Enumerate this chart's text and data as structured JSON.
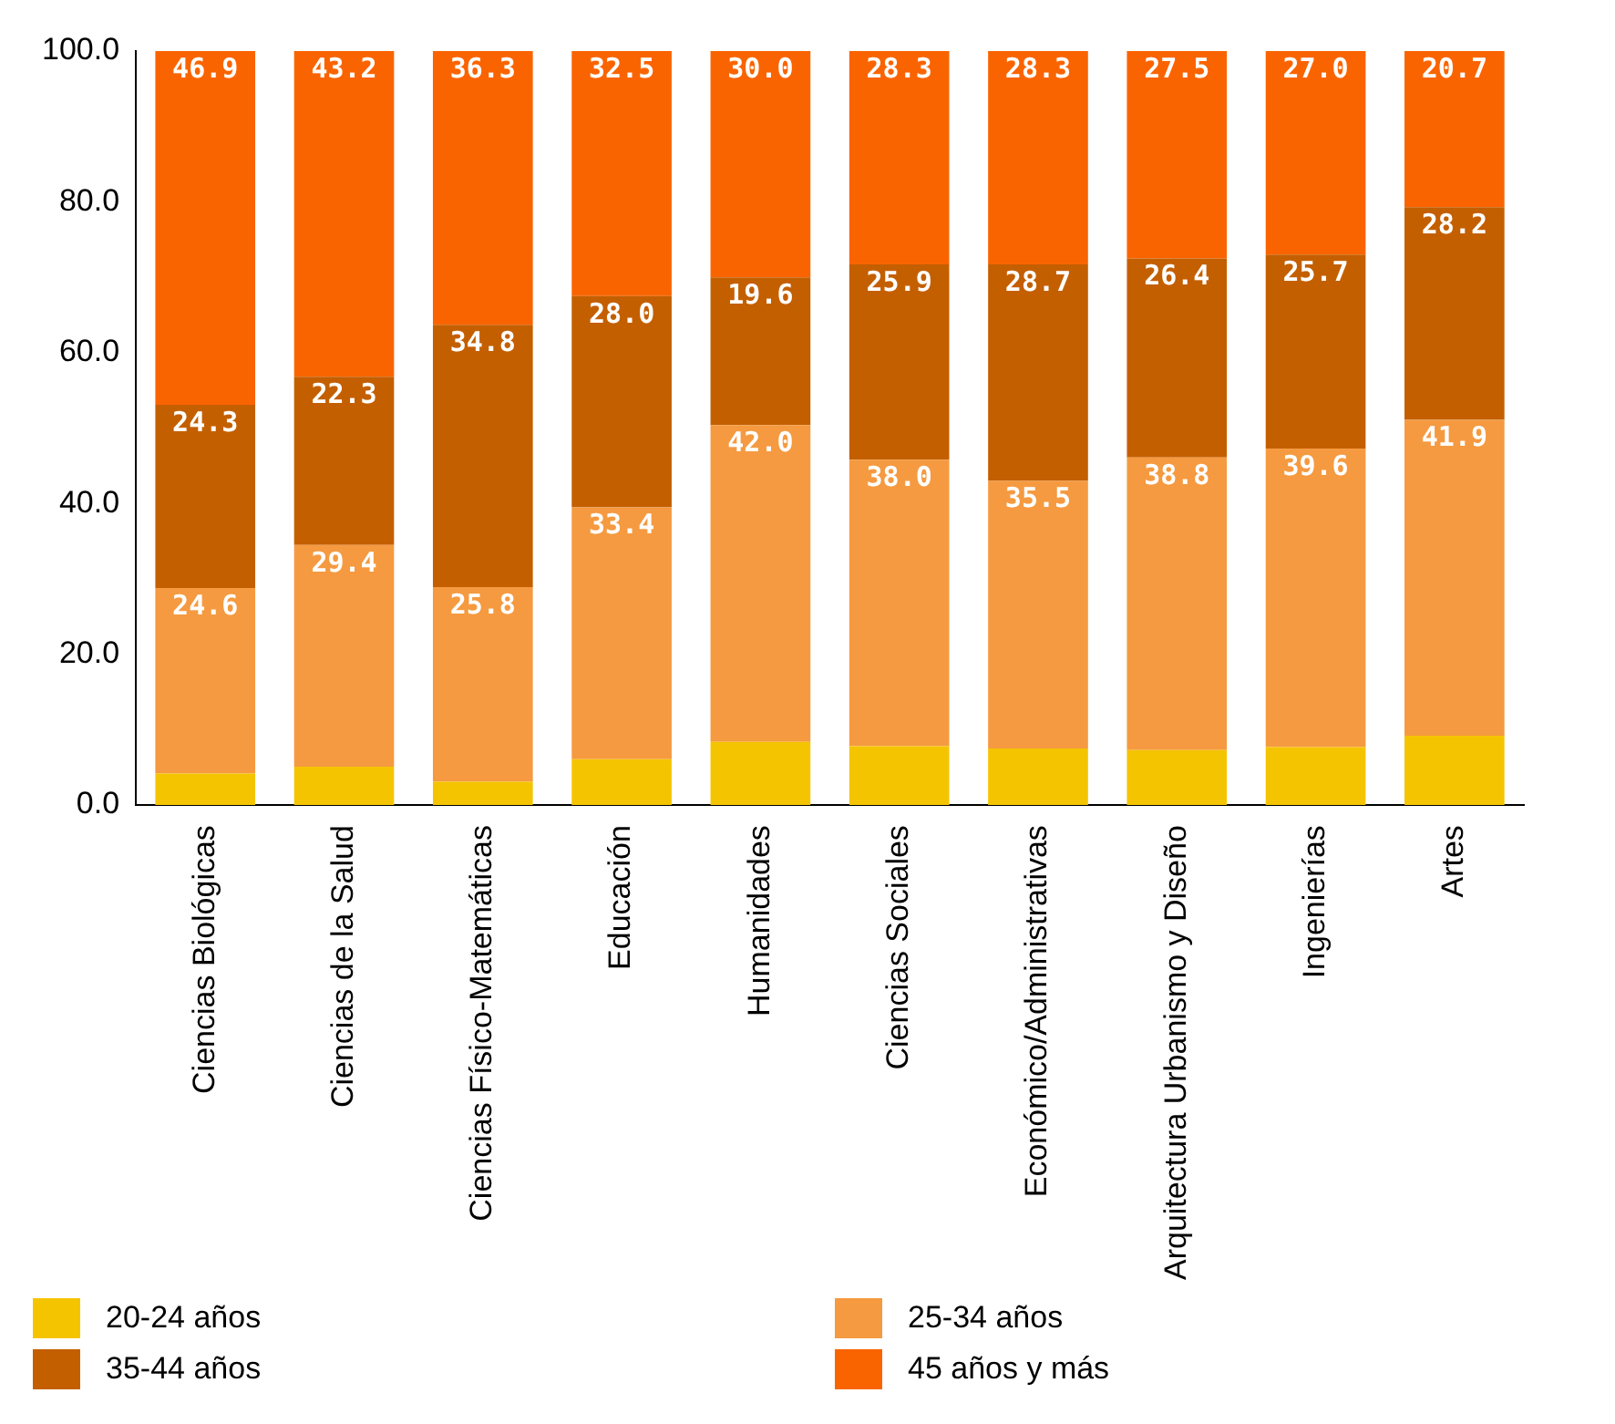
{
  "chart_data": {
    "type": "bar",
    "stacked": true,
    "categories": [
      "Ciencias Biológicas",
      "Ciencias de la Salud",
      "Ciencias Físico-Matemáticas",
      "Educación",
      "Humanidades",
      "Ciencias Sociales",
      "Económico/Administrativas",
      "Arquitectura Urbanismo y Diseño",
      "Ingenierías",
      "Artes"
    ],
    "series": [
      {
        "name": "20-24 años",
        "color": "#f5c400",
        "values": [
          4.2,
          5.1,
          3.1,
          6.1,
          8.4,
          7.8,
          7.5,
          7.3,
          7.7,
          9.2
        ],
        "value_labels": [
          null,
          null,
          null,
          null,
          null,
          null,
          null,
          null,
          null,
          null
        ]
      },
      {
        "name": "25-34 años",
        "color": "#f59a40",
        "values": [
          24.6,
          29.4,
          25.8,
          33.4,
          42.0,
          38.0,
          35.5,
          38.8,
          39.6,
          41.9
        ],
        "value_labels": [
          "24.6",
          "29.4",
          "25.8",
          "33.4",
          "42.0",
          "38.0",
          "35.5",
          "38.8",
          "39.6",
          "41.9"
        ]
      },
      {
        "name": "35-44 años",
        "color": "#c45f00",
        "values": [
          24.3,
          22.3,
          34.8,
          28.0,
          19.6,
          25.9,
          28.7,
          26.4,
          25.7,
          28.2
        ],
        "value_labels": [
          "24.3",
          "22.3",
          "34.8",
          "28.0",
          "19.6",
          "25.9",
          "28.7",
          "26.4",
          "25.7",
          "28.2"
        ]
      },
      {
        "name": "45 años y más",
        "color": "#fa6400",
        "values": [
          46.9,
          43.2,
          36.3,
          32.5,
          30.0,
          28.3,
          28.3,
          27.5,
          27.0,
          20.7
        ],
        "value_labels": [
          "46.9",
          "43.2",
          "36.3",
          "32.5",
          "30.0",
          "28.3",
          "28.3",
          "27.5",
          "27.0",
          "20.7"
        ]
      }
    ],
    "ylim": [
      0,
      100
    ],
    "yticks": [
      {
        "value": 0,
        "label": "0.0"
      },
      {
        "value": 20,
        "label": "20.0"
      },
      {
        "value": 40,
        "label": "40.0"
      },
      {
        "value": 60,
        "label": "60.0"
      },
      {
        "value": 80,
        "label": "80.0"
      },
      {
        "value": 100,
        "label": "100.0"
      }
    ],
    "grid": false,
    "legend": "bottom"
  }
}
